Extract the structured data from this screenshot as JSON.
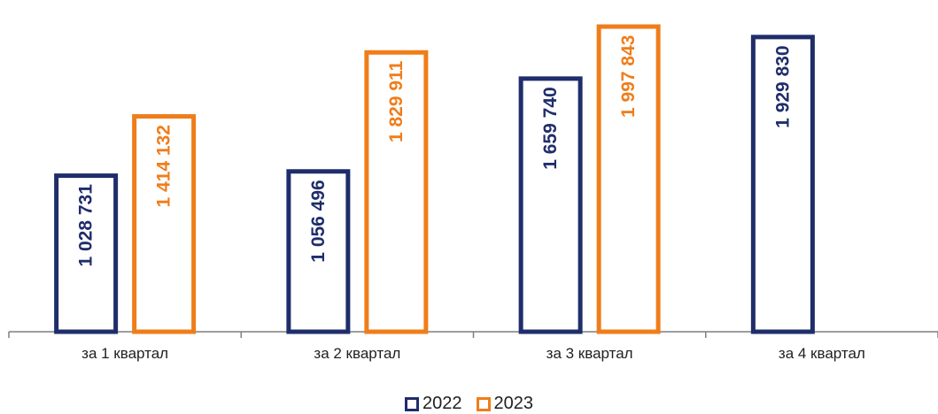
{
  "chart_data": {
    "type": "bar",
    "categories": [
      "за 1 квартал",
      "за 2 квартал",
      "за 3 квартал",
      "за 4 квартал"
    ],
    "series": [
      {
        "name": "2022",
        "color": "#1f2d6b",
        "values": [
          1028731,
          1056496,
          1659740,
          1929830
        ],
        "labels": [
          "1 028 731",
          "1 056 496",
          "1 659 740",
          "1 929 830"
        ]
      },
      {
        "name": "2023",
        "color": "#ef7d1a",
        "values": [
          1414132,
          1829911,
          1997843,
          null
        ],
        "labels": [
          "1 414 132",
          "1 829 911",
          "1 997 843",
          null
        ]
      }
    ],
    "ylim": [
      0,
      2070000
    ],
    "grid": false,
    "legend_position": "bottom"
  }
}
